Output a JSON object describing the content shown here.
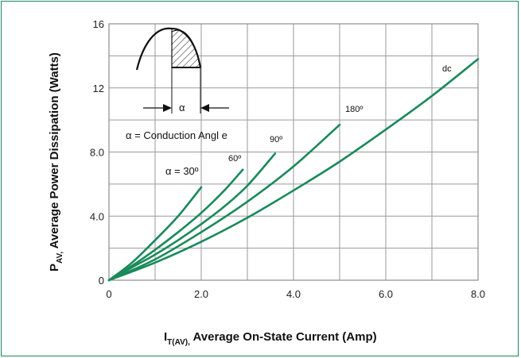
{
  "chart_data": {
    "type": "line",
    "title": "",
    "xlabel_main": "I",
    "xlabel_sub": "T(AV),",
    "xlabel_rest": " Average On-State Current (Amp)",
    "ylabel_main": "P",
    "ylabel_sub": "AV,",
    "ylabel_rest": " Average Power Dissipation (Watts)",
    "xlim": [
      0,
      8
    ],
    "ylim": [
      0,
      16
    ],
    "xticks": [
      0,
      2,
      4,
      6,
      8
    ],
    "xtick_labels": [
      "0",
      "2.0",
      "4.0",
      "6.0",
      "8.0"
    ],
    "yticks": [
      0,
      4,
      8,
      12,
      16
    ],
    "ytick_labels": [
      "0",
      "4.0",
      "8.0",
      "12",
      "16"
    ],
    "grid": true,
    "line_color": "#1a8a5a",
    "series": [
      {
        "name": "α = 30º",
        "x": [
          0,
          0.5,
          1.0,
          1.5,
          2.0
        ],
        "y": [
          0,
          1.1,
          2.5,
          4.0,
          5.8
        ]
      },
      {
        "name": "60º",
        "x": [
          0,
          0.5,
          1.0,
          1.5,
          2.0,
          2.5,
          2.9
        ],
        "y": [
          0,
          0.9,
          1.9,
          3.0,
          4.2,
          5.6,
          6.9
        ]
      },
      {
        "name": "90º",
        "x": [
          0,
          0.5,
          1.0,
          1.5,
          2.0,
          2.5,
          3.0,
          3.6
        ],
        "y": [
          0,
          0.8,
          1.6,
          2.5,
          3.5,
          4.6,
          5.9,
          7.9
        ]
      },
      {
        "name": "180º",
        "x": [
          0,
          1.0,
          2.0,
          3.0,
          4.0,
          5.0
        ],
        "y": [
          0,
          1.3,
          3.0,
          4.9,
          7.1,
          9.7
        ]
      },
      {
        "name": "dc",
        "x": [
          0,
          1.0,
          2.0,
          3.0,
          4.0,
          5.0,
          6.0,
          7.0,
          8.0
        ],
        "y": [
          0,
          1.1,
          2.4,
          3.9,
          5.6,
          7.4,
          9.4,
          11.5,
          13.8
        ]
      }
    ],
    "annotations": {
      "alpha_30": "α = 30º",
      "label_60": "60º",
      "label_90": "90º",
      "label_180": "180º",
      "label_dc": "dc",
      "conduction_angle": "α = Conduction Angl e",
      "alpha_symbol": "α"
    }
  }
}
